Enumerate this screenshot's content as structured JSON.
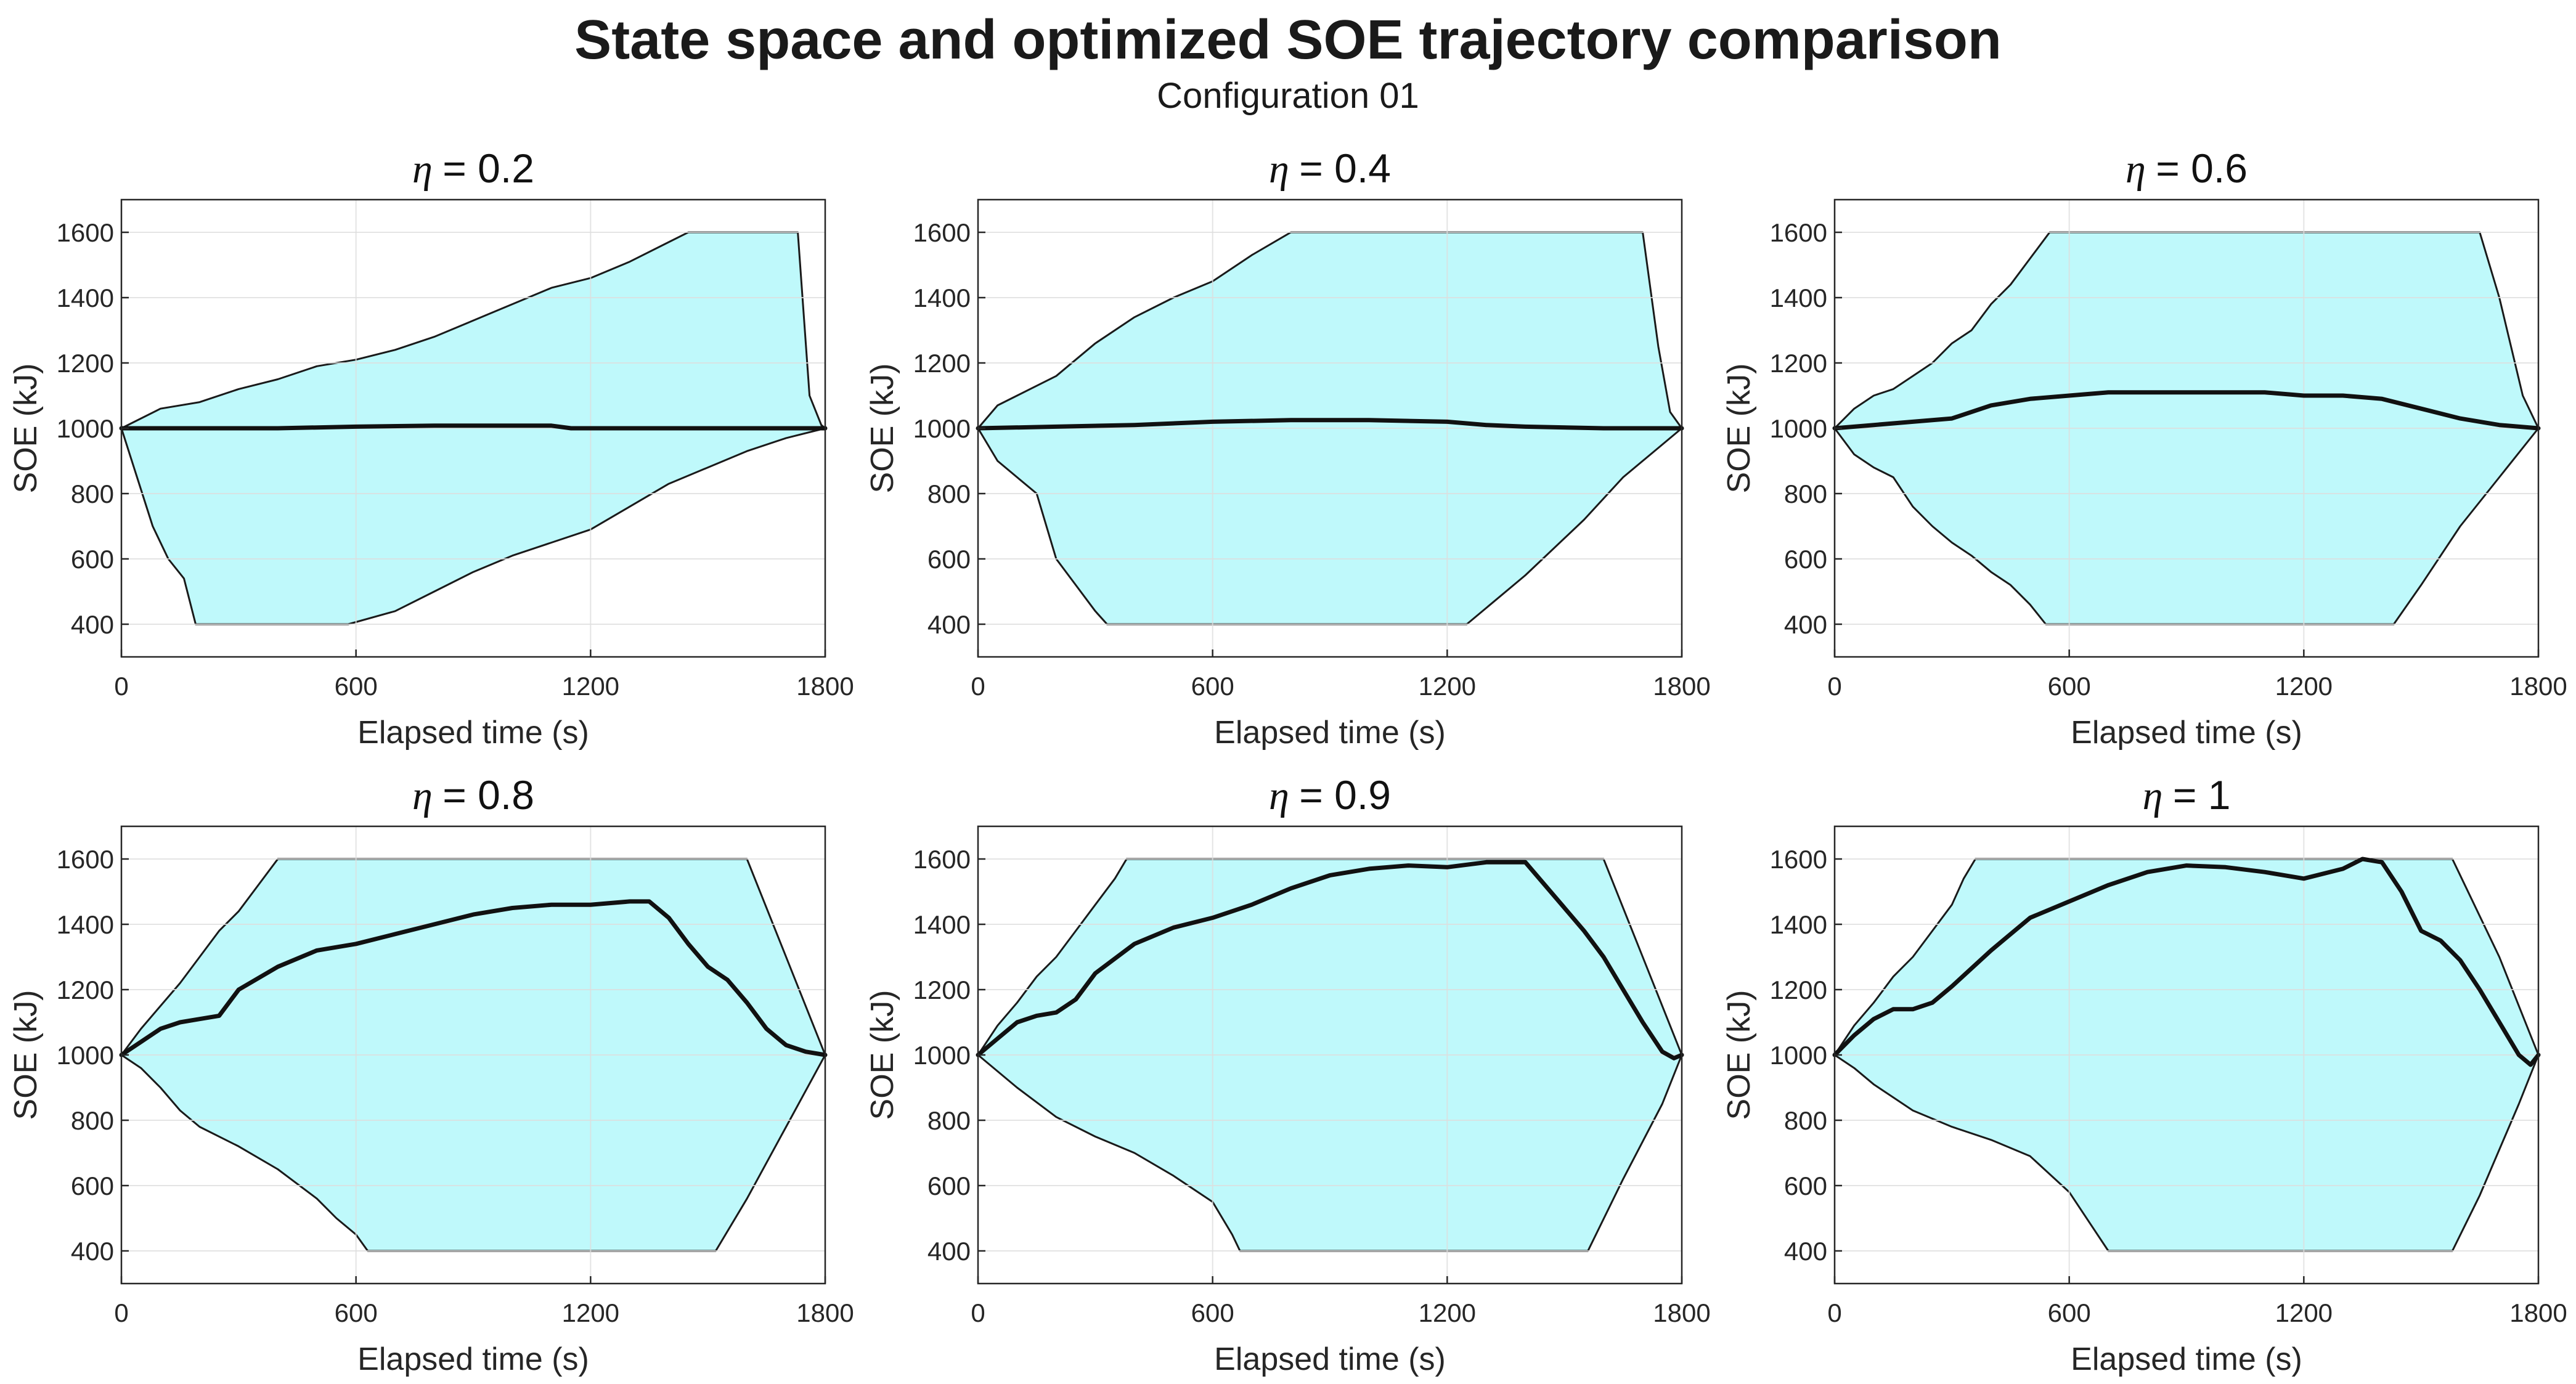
{
  "figure": {
    "title": "State space and optimized SOE trajectory comparison",
    "subtitle": "Configuration 01"
  },
  "colors": {
    "fill": "#bff9fb",
    "border": "#1a1a1a",
    "trajectory": "#111111",
    "grid": "#dddddd"
  },
  "chart_data": [
    {
      "type": "area",
      "title_symbol": "η",
      "title_value": "= 0.2",
      "xlabel": "Elapsed time (s)",
      "ylabel": "SOE (kJ)",
      "xlim": [
        0,
        1800
      ],
      "ylim": [
        300,
        1700
      ],
      "xticks": [
        0,
        600,
        1200,
        1800
      ],
      "yticks": [
        400,
        600,
        800,
        1000,
        1200,
        1400,
        1600
      ],
      "upper": [
        [
          0,
          1000
        ],
        [
          100,
          1060
        ],
        [
          200,
          1080
        ],
        [
          300,
          1120
        ],
        [
          400,
          1150
        ],
        [
          500,
          1190
        ],
        [
          600,
          1210
        ],
        [
          700,
          1240
        ],
        [
          800,
          1280
        ],
        [
          900,
          1330
        ],
        [
          1000,
          1380
        ],
        [
          1100,
          1430
        ],
        [
          1200,
          1460
        ],
        [
          1300,
          1510
        ],
        [
          1400,
          1570
        ],
        [
          1450,
          1600
        ],
        [
          1730,
          1600
        ],
        [
          1760,
          1100
        ],
        [
          1790,
          1010
        ],
        [
          1800,
          1000
        ]
      ],
      "lower": [
        [
          0,
          1000
        ],
        [
          40,
          850
        ],
        [
          80,
          700
        ],
        [
          120,
          600
        ],
        [
          160,
          540
        ],
        [
          190,
          400
        ],
        [
          580,
          400
        ],
        [
          700,
          440
        ],
        [
          800,
          500
        ],
        [
          900,
          560
        ],
        [
          1000,
          610
        ],
        [
          1100,
          650
        ],
        [
          1200,
          690
        ],
        [
          1300,
          760
        ],
        [
          1400,
          830
        ],
        [
          1500,
          880
        ],
        [
          1600,
          930
        ],
        [
          1700,
          970
        ],
        [
          1800,
          1000
        ]
      ],
      "trajectory": [
        [
          0,
          1000
        ],
        [
          200,
          1000
        ],
        [
          400,
          1000
        ],
        [
          600,
          1005
        ],
        [
          800,
          1008
        ],
        [
          1000,
          1008
        ],
        [
          1100,
          1008
        ],
        [
          1150,
          1000
        ],
        [
          1400,
          1000
        ],
        [
          1600,
          1000
        ],
        [
          1800,
          1000
        ]
      ]
    },
    {
      "type": "area",
      "title_symbol": "η",
      "title_value": "= 0.4",
      "xlabel": "Elapsed time (s)",
      "ylabel": "SOE (kJ)",
      "xlim": [
        0,
        1800
      ],
      "ylim": [
        300,
        1700
      ],
      "xticks": [
        0,
        600,
        1200,
        1800
      ],
      "yticks": [
        400,
        600,
        800,
        1000,
        1200,
        1400,
        1600
      ],
      "upper": [
        [
          0,
          1000
        ],
        [
          50,
          1070
        ],
        [
          100,
          1100
        ],
        [
          200,
          1160
        ],
        [
          300,
          1260
        ],
        [
          400,
          1340
        ],
        [
          500,
          1400
        ],
        [
          600,
          1450
        ],
        [
          700,
          1530
        ],
        [
          800,
          1600
        ],
        [
          1700,
          1600
        ],
        [
          1740,
          1250
        ],
        [
          1770,
          1050
        ],
        [
          1800,
          1000
        ]
      ],
      "lower": [
        [
          0,
          1000
        ],
        [
          50,
          900
        ],
        [
          100,
          850
        ],
        [
          150,
          800
        ],
        [
          180,
          680
        ],
        [
          200,
          600
        ],
        [
          250,
          520
        ],
        [
          300,
          440
        ],
        [
          330,
          400
        ],
        [
          1250,
          400
        ],
        [
          1400,
          550
        ],
        [
          1550,
          720
        ],
        [
          1650,
          850
        ],
        [
          1750,
          950
        ],
        [
          1800,
          1000
        ]
      ],
      "trajectory": [
        [
          0,
          1000
        ],
        [
          200,
          1005
        ],
        [
          400,
          1010
        ],
        [
          600,
          1020
        ],
        [
          800,
          1025
        ],
        [
          1000,
          1025
        ],
        [
          1200,
          1020
        ],
        [
          1300,
          1010
        ],
        [
          1400,
          1005
        ],
        [
          1600,
          1000
        ],
        [
          1800,
          1000
        ]
      ]
    },
    {
      "type": "area",
      "title_symbol": "η",
      "title_value": "= 0.6",
      "xlabel": "Elapsed time (s)",
      "ylabel": "SOE (kJ)",
      "xlim": [
        0,
        1800
      ],
      "ylim": [
        300,
        1700
      ],
      "xticks": [
        0,
        600,
        1200,
        1800
      ],
      "yticks": [
        400,
        600,
        800,
        1000,
        1200,
        1400,
        1600
      ],
      "upper": [
        [
          0,
          1000
        ],
        [
          50,
          1060
        ],
        [
          100,
          1100
        ],
        [
          150,
          1120
        ],
        [
          200,
          1160
        ],
        [
          250,
          1200
        ],
        [
          300,
          1260
        ],
        [
          350,
          1300
        ],
        [
          400,
          1380
        ],
        [
          450,
          1440
        ],
        [
          500,
          1520
        ],
        [
          550,
          1600
        ],
        [
          1650,
          1600
        ],
        [
          1700,
          1400
        ],
        [
          1760,
          1100
        ],
        [
          1800,
          1000
        ]
      ],
      "lower": [
        [
          0,
          1000
        ],
        [
          50,
          920
        ],
        [
          100,
          880
        ],
        [
          150,
          850
        ],
        [
          200,
          760
        ],
        [
          250,
          700
        ],
        [
          300,
          650
        ],
        [
          350,
          610
        ],
        [
          400,
          560
        ],
        [
          450,
          520
        ],
        [
          500,
          460
        ],
        [
          540,
          400
        ],
        [
          1430,
          400
        ],
        [
          1500,
          520
        ],
        [
          1600,
          700
        ],
        [
          1700,
          850
        ],
        [
          1800,
          1000
        ]
      ],
      "trajectory": [
        [
          0,
          1000
        ],
        [
          100,
          1010
        ],
        [
          200,
          1020
        ],
        [
          300,
          1030
        ],
        [
          400,
          1070
        ],
        [
          500,
          1090
        ],
        [
          600,
          1100
        ],
        [
          700,
          1110
        ],
        [
          800,
          1110
        ],
        [
          900,
          1110
        ],
        [
          1000,
          1110
        ],
        [
          1100,
          1110
        ],
        [
          1200,
          1100
        ],
        [
          1300,
          1100
        ],
        [
          1400,
          1090
        ],
        [
          1500,
          1060
        ],
        [
          1600,
          1030
        ],
        [
          1700,
          1010
        ],
        [
          1800,
          1000
        ]
      ]
    },
    {
      "type": "area",
      "title_symbol": "η",
      "title_value": "= 0.8",
      "xlabel": "Elapsed time (s)",
      "ylabel": "SOE (kJ)",
      "xlim": [
        0,
        1800
      ],
      "ylim": [
        300,
        1700
      ],
      "xticks": [
        0,
        600,
        1200,
        1800
      ],
      "yticks": [
        400,
        600,
        800,
        1000,
        1200,
        1400,
        1600
      ],
      "upper": [
        [
          0,
          1000
        ],
        [
          50,
          1080
        ],
        [
          100,
          1150
        ],
        [
          150,
          1220
        ],
        [
          200,
          1300
        ],
        [
          250,
          1380
        ],
        [
          300,
          1440
        ],
        [
          350,
          1520
        ],
        [
          400,
          1600
        ],
        [
          1600,
          1600
        ],
        [
          1700,
          1300
        ],
        [
          1800,
          1000
        ]
      ],
      "lower": [
        [
          0,
          1000
        ],
        [
          50,
          960
        ],
        [
          100,
          900
        ],
        [
          150,
          830
        ],
        [
          200,
          780
        ],
        [
          300,
          720
        ],
        [
          400,
          650
        ],
        [
          500,
          560
        ],
        [
          550,
          500
        ],
        [
          600,
          450
        ],
        [
          630,
          400
        ],
        [
          1520,
          400
        ],
        [
          1600,
          560
        ],
        [
          1700,
          780
        ],
        [
          1800,
          1000
        ]
      ],
      "trajectory": [
        [
          0,
          1000
        ],
        [
          50,
          1040
        ],
        [
          100,
          1080
        ],
        [
          150,
          1100
        ],
        [
          200,
          1110
        ],
        [
          250,
          1120
        ],
        [
          300,
          1200
        ],
        [
          400,
          1270
        ],
        [
          500,
          1320
        ],
        [
          600,
          1340
        ],
        [
          700,
          1370
        ],
        [
          800,
          1400
        ],
        [
          900,
          1430
        ],
        [
          1000,
          1450
        ],
        [
          1100,
          1460
        ],
        [
          1200,
          1460
        ],
        [
          1300,
          1470
        ],
        [
          1350,
          1470
        ],
        [
          1400,
          1420
        ],
        [
          1450,
          1340
        ],
        [
          1500,
          1270
        ],
        [
          1550,
          1230
        ],
        [
          1600,
          1160
        ],
        [
          1650,
          1080
        ],
        [
          1700,
          1030
        ],
        [
          1750,
          1010
        ],
        [
          1800,
          1000
        ]
      ]
    },
    {
      "type": "area",
      "title_symbol": "η",
      "title_value": "= 0.9",
      "xlabel": "Elapsed time (s)",
      "ylabel": "SOE (kJ)",
      "xlim": [
        0,
        1800
      ],
      "ylim": [
        300,
        1700
      ],
      "xticks": [
        0,
        600,
        1200,
        1800
      ],
      "yticks": [
        400,
        600,
        800,
        1000,
        1200,
        1400,
        1600
      ],
      "upper": [
        [
          0,
          1000
        ],
        [
          50,
          1090
        ],
        [
          100,
          1160
        ],
        [
          150,
          1240
        ],
        [
          200,
          1300
        ],
        [
          250,
          1380
        ],
        [
          300,
          1460
        ],
        [
          350,
          1540
        ],
        [
          380,
          1600
        ],
        [
          1600,
          1600
        ],
        [
          1700,
          1300
        ],
        [
          1800,
          1000
        ]
      ],
      "lower": [
        [
          0,
          1000
        ],
        [
          50,
          950
        ],
        [
          100,
          900
        ],
        [
          200,
          810
        ],
        [
          300,
          750
        ],
        [
          400,
          700
        ],
        [
          500,
          630
        ],
        [
          600,
          550
        ],
        [
          650,
          450
        ],
        [
          670,
          400
        ],
        [
          1560,
          400
        ],
        [
          1650,
          620
        ],
        [
          1750,
          850
        ],
        [
          1800,
          1000
        ]
      ],
      "trajectory": [
        [
          0,
          1000
        ],
        [
          50,
          1050
        ],
        [
          100,
          1100
        ],
        [
          150,
          1120
        ],
        [
          200,
          1130
        ],
        [
          250,
          1170
        ],
        [
          300,
          1250
        ],
        [
          400,
          1340
        ],
        [
          500,
          1390
        ],
        [
          600,
          1420
        ],
        [
          700,
          1460
        ],
        [
          800,
          1510
        ],
        [
          900,
          1550
        ],
        [
          1000,
          1570
        ],
        [
          1100,
          1580
        ],
        [
          1200,
          1575
        ],
        [
          1300,
          1590
        ],
        [
          1400,
          1590
        ],
        [
          1500,
          1450
        ],
        [
          1550,
          1380
        ],
        [
          1600,
          1300
        ],
        [
          1650,
          1200
        ],
        [
          1700,
          1100
        ],
        [
          1750,
          1010
        ],
        [
          1780,
          990
        ],
        [
          1800,
          1000
        ]
      ]
    },
    {
      "type": "area",
      "title_symbol": "η",
      "title_value": "= 1",
      "xlabel": "Elapsed time (s)",
      "ylabel": "SOE (kJ)",
      "xlim": [
        0,
        1800
      ],
      "ylim": [
        300,
        1700
      ],
      "xticks": [
        0,
        600,
        1200,
        1800
      ],
      "yticks": [
        400,
        600,
        800,
        1000,
        1200,
        1400,
        1600
      ],
      "upper": [
        [
          0,
          1000
        ],
        [
          50,
          1090
        ],
        [
          100,
          1160
        ],
        [
          150,
          1240
        ],
        [
          200,
          1300
        ],
        [
          250,
          1380
        ],
        [
          300,
          1460
        ],
        [
          330,
          1540
        ],
        [
          360,
          1600
        ],
        [
          1580,
          1600
        ],
        [
          1700,
          1300
        ],
        [
          1800,
          1000
        ]
      ],
      "lower": [
        [
          0,
          1000
        ],
        [
          50,
          960
        ],
        [
          100,
          910
        ],
        [
          200,
          830
        ],
        [
          300,
          780
        ],
        [
          400,
          740
        ],
        [
          500,
          690
        ],
        [
          600,
          580
        ],
        [
          650,
          490
        ],
        [
          700,
          400
        ],
        [
          1580,
          400
        ],
        [
          1650,
          570
        ],
        [
          1750,
          850
        ],
        [
          1800,
          1000
        ]
      ],
      "trajectory": [
        [
          0,
          1000
        ],
        [
          50,
          1060
        ],
        [
          100,
          1110
        ],
        [
          150,
          1140
        ],
        [
          200,
          1140
        ],
        [
          250,
          1160
        ],
        [
          300,
          1210
        ],
        [
          400,
          1320
        ],
        [
          500,
          1420
        ],
        [
          600,
          1470
        ],
        [
          700,
          1520
        ],
        [
          800,
          1560
        ],
        [
          900,
          1580
        ],
        [
          1000,
          1575
        ],
        [
          1100,
          1560
        ],
        [
          1200,
          1540
        ],
        [
          1300,
          1570
        ],
        [
          1350,
          1600
        ],
        [
          1400,
          1590
        ],
        [
          1450,
          1500
        ],
        [
          1500,
          1380
        ],
        [
          1550,
          1350
        ],
        [
          1600,
          1290
        ],
        [
          1650,
          1200
        ],
        [
          1700,
          1100
        ],
        [
          1750,
          1000
        ],
        [
          1780,
          970
        ],
        [
          1800,
          1000
        ]
      ]
    }
  ]
}
